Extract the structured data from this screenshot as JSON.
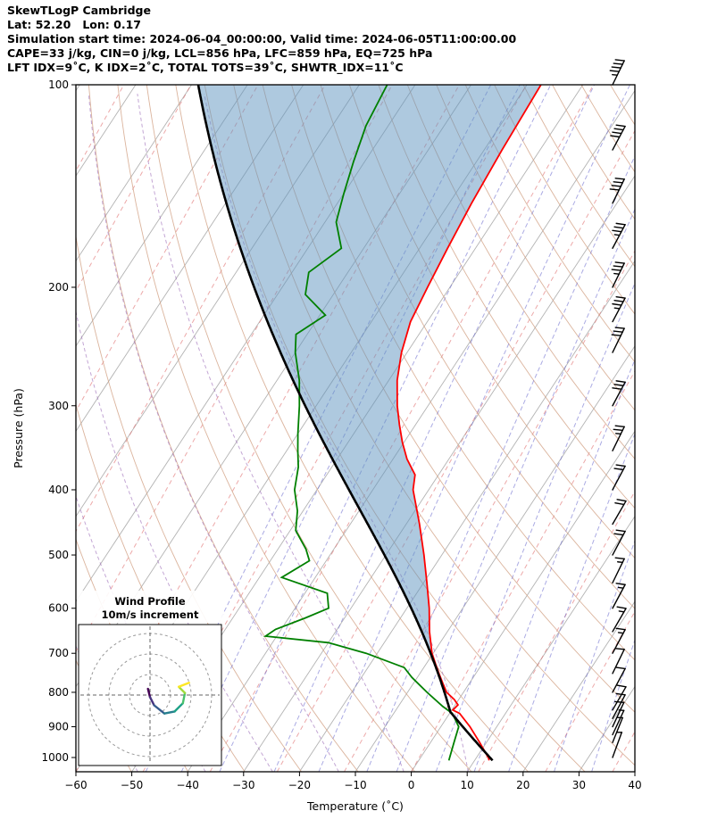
{
  "header": {
    "title": "SkewTLogP Cambridge",
    "latlon": "Lat: 52.20   Lon: 0.17",
    "times": "Simulation start time: 2024-06-04_00:00:00, Valid time: 2024-06-05T11:00:00.00",
    "indices1": "CAPE=33 j/kg, CIN=0 j/kg, LCL=856 hPa, LFC=859 hPa, EQ=725 hPa",
    "indices2": "LFT IDX=9˚C, K IDX=2˚C, TOTAL TOTS=39˚C, SHWTR_IDX=11˚C"
  },
  "chart_data": {
    "type": "skewt-logp",
    "title": "SkewTLogP Cambridge",
    "location": {
      "name": "Cambridge",
      "lat": 52.2,
      "lon": 0.17
    },
    "times": {
      "start": "2024-06-04_00:00:00",
      "valid": "2024-06-05T11:00:00.00"
    },
    "indices": {
      "cape_j_kg": 33,
      "cin_j_kg": 0,
      "lcl_hpa": 856,
      "lfc_hpa": 859,
      "eq_hpa": 725,
      "lifted_index_c": 9,
      "k_index_c": 2,
      "total_totals_c": 39,
      "showalter_index_c": 11
    },
    "axes": {
      "x_label": "Temperature (˚C)",
      "y_label": "Pressure (hPa)",
      "x_ticks": [
        {
          "value": -60,
          "label": "−60"
        },
        {
          "value": -50,
          "label": "−50"
        },
        {
          "value": -40,
          "label": "−40"
        },
        {
          "value": -30,
          "label": "−30"
        },
        {
          "value": -20,
          "label": "−20"
        },
        {
          "value": -10,
          "label": "−10"
        },
        {
          "value": 0,
          "label": "0"
        },
        {
          "value": 10,
          "label": "10"
        },
        {
          "value": 20,
          "label": "20"
        },
        {
          "value": 30,
          "label": "30"
        },
        {
          "value": 40,
          "label": "40"
        }
      ],
      "y_ticks": [
        100,
        200,
        300,
        400,
        500,
        600,
        700,
        800,
        900,
        1000
      ],
      "x_range_c": [
        -60,
        40
      ],
      "p_range_hpa": [
        100,
        1050
      ],
      "skew": 0.656
    },
    "temperature_profile": {
      "pressure": [
        1010,
        1000,
        950,
        900,
        860,
        850,
        835,
        820,
        800,
        775,
        750,
        725,
        700,
        650,
        600,
        550,
        500,
        450,
        400,
        380,
        360,
        340,
        320,
        300,
        275,
        250,
        225,
        200,
        175,
        150,
        125,
        100
      ],
      "temp_c": [
        12.6,
        12.1,
        8.8,
        5.2,
        1.8,
        0.2,
        0.5,
        -0.8,
        -3.0,
        -4.8,
        -6.6,
        -8.4,
        -10.2,
        -13.2,
        -16.0,
        -19.4,
        -23.2,
        -27.6,
        -32.8,
        -34.2,
        -37.5,
        -40.3,
        -42.9,
        -45.5,
        -48.5,
        -51.0,
        -53.0,
        -54.0,
        -55.0,
        -56.0,
        -56.8,
        -57.5
      ]
    },
    "dewpoint_profile": {
      "pressure": [
        1010,
        1000,
        950,
        900,
        860,
        840,
        800,
        760,
        735,
        700,
        675,
        660,
        645,
        620,
        600,
        570,
        540,
        510,
        490,
        460,
        430,
        400,
        370,
        350,
        330,
        300,
        275,
        250,
        235,
        220,
        205,
        190,
        175,
        160,
        145,
        130,
        115,
        100
      ],
      "dewpoint_c": [
        5.4,
        5.2,
        4.2,
        3.2,
        0.5,
        -2.0,
        -6.5,
        -11.0,
        -13.5,
        -22.0,
        -30.0,
        -42.0,
        -41.0,
        -37.0,
        -34.0,
        -36.0,
        -46.0,
        -43.0,
        -45.0,
        -49.0,
        -51.0,
        -54.0,
        -56.0,
        -58.0,
        -60.0,
        -63.0,
        -66.0,
        -70.0,
        -72.0,
        -69.0,
        -75.0,
        -77.0,
        -74.0,
        -78.0,
        -80.0,
        -82.0,
        -84.0,
        -85.0
      ]
    },
    "parcel_profile": {
      "surface_pressure": 1010,
      "surface_temp_c": 13.2,
      "lcl_hpa": 856,
      "eq_hpa": 725
    },
    "background_lines": {
      "isotherms_c": {
        "start": -150,
        "end": 40,
        "step": 10
      },
      "aux_isotherms_c": {
        "start": -156,
        "end": 36,
        "step": 12
      },
      "dry_adiabats_k": {
        "start": 220,
        "end": 500,
        "step": 10
      },
      "moist_adiabats_c": [
        -64,
        -52,
        -40,
        -28,
        -16,
        -4,
        8
      ],
      "mixing_ratio_g_kg": [
        0.05,
        0.1,
        0.2,
        0.5,
        1,
        2,
        3,
        5,
        8,
        12,
        20,
        30
      ]
    },
    "wind_barbs": {
      "full_barb_ms": 10,
      "levels": [
        [
          1000,
          5,
          20
        ],
        [
          950,
          6,
          22
        ],
        [
          925,
          7,
          25
        ],
        [
          900,
          8,
          25
        ],
        [
          875,
          9,
          28
        ],
        [
          850,
          10,
          30
        ],
        [
          800,
          11,
          28
        ],
        [
          750,
          12,
          26
        ],
        [
          700,
          13,
          28
        ],
        [
          650,
          14,
          30
        ],
        [
          600,
          15,
          28
        ],
        [
          550,
          16,
          26
        ],
        [
          500,
          18,
          28
        ],
        [
          450,
          20,
          30
        ],
        [
          400,
          22,
          28
        ],
        [
          350,
          25,
          26
        ],
        [
          300,
          28,
          28
        ],
        [
          250,
          31,
          26
        ],
        [
          225,
          33,
          28
        ],
        [
          200,
          35,
          26
        ],
        [
          175,
          37,
          28
        ],
        [
          150,
          40,
          26
        ],
        [
          125,
          42,
          28
        ],
        [
          100,
          44,
          26
        ]
      ]
    },
    "hodograph": {
      "title": "Wind Profile",
      "subtitle": "10m/s increment",
      "ring_interval_ms": 10,
      "rings_ms": [
        10,
        20,
        30
      ],
      "trace_uv_ms": [
        [
          -1,
          3
        ],
        [
          0,
          -1
        ],
        [
          2,
          -5
        ],
        [
          7,
          -9
        ],
        [
          12,
          -8
        ],
        [
          16,
          -4
        ],
        [
          17,
          1
        ],
        [
          14,
          4
        ],
        [
          19,
          6
        ]
      ],
      "trace_colors": [
        "#440154",
        "#46327e",
        "#365c8d",
        "#277f8e",
        "#1fa187",
        "#4ac16d",
        "#a0da39",
        "#fde725"
      ]
    }
  },
  "style": {
    "temperature_color": "#ff0000",
    "dewpoint_color": "#008000",
    "parcel_color": "#000000",
    "shade_color": "#5d94bf",
    "isotherm_color": "#b3b3b3",
    "aux_isotherm_color": "#e07070",
    "dry_adiabat_color": "#d2a184",
    "moist_adiabat_color": "#9b6bb8",
    "mixing_ratio_color": "#6666cc",
    "barb_color": "#000000",
    "frame_color": "#000000"
  }
}
